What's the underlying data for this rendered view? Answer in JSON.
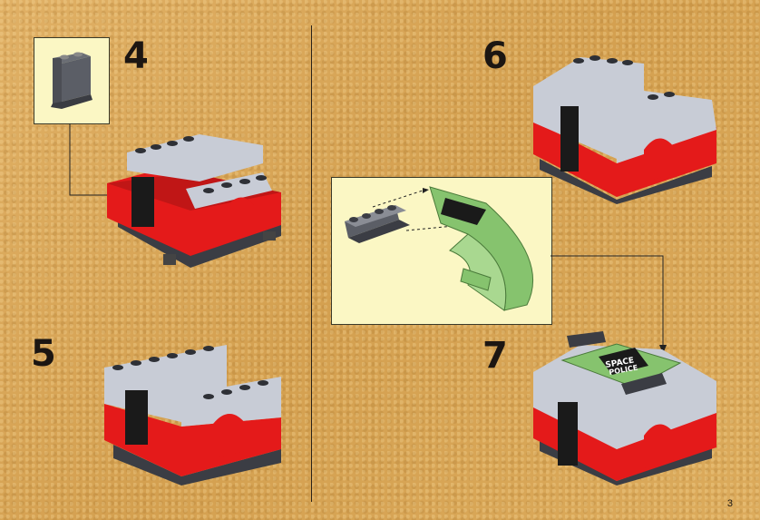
{
  "steps": [
    {
      "number": "4"
    },
    {
      "number": "5"
    },
    {
      "number": "6"
    },
    {
      "number": "7"
    }
  ],
  "sign_text": {
    "line1": "SPACE",
    "line2": "POLICE"
  },
  "page_number": "3",
  "colors": {
    "background": "#d9a756",
    "callout": "#fbf7c4",
    "brick_red": "#e41a1a",
    "brick_grey": "#c8ccd6",
    "brick_dark": "#3b3d44",
    "canopy_green": "#86c36e"
  }
}
